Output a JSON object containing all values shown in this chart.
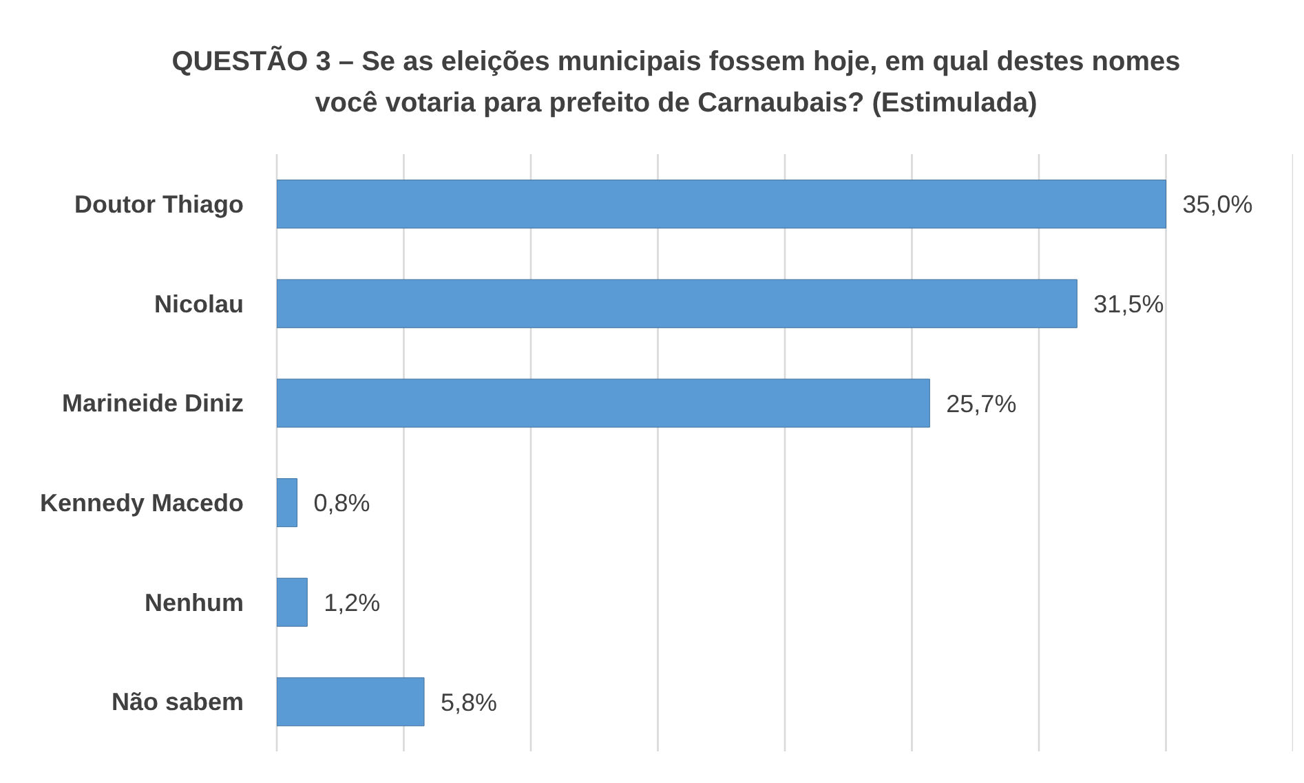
{
  "chart_data": {
    "type": "bar",
    "orientation": "horizontal",
    "title": "QUESTÃO 3 – Se as eleições municipais fossem hoje, em qual destes nomes você votaria para prefeito de Carnaubais? (Estimulada)",
    "categories": [
      "Doutor Thiago",
      "Nicolau",
      "Marineide Diniz",
      "Kennedy Macedo",
      "Nenhum",
      "Não sabem"
    ],
    "values": [
      35.0,
      31.5,
      25.7,
      0.8,
      1.2,
      5.8
    ],
    "value_labels": [
      "35,0%",
      "31,5%",
      "25,7%",
      "0,8%",
      "1,2%",
      "5,8%"
    ],
    "color": "#5b9bd5",
    "xlim": [
      0,
      40
    ],
    "tick_labels": "y",
    "grid": "x"
  }
}
